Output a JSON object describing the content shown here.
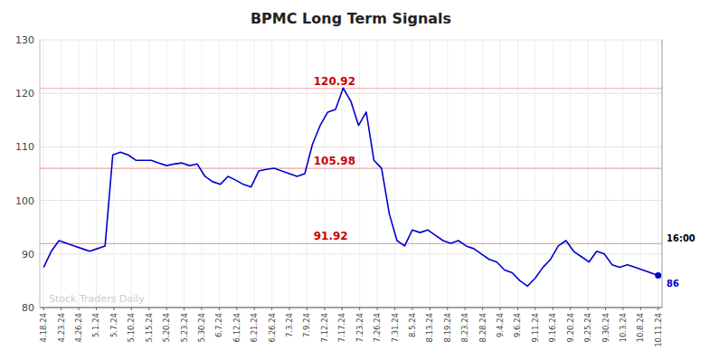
{
  "chart_data": {
    "type": "line",
    "title": "BPMC Long Term Signals",
    "color": "#0000cc",
    "grid": true,
    "x": [
      0,
      1,
      2,
      3,
      4,
      5,
      6,
      7,
      8,
      9,
      10,
      11,
      12,
      13,
      14,
      15,
      16,
      17,
      18,
      19,
      20,
      21,
      22,
      23,
      24,
      25,
      26,
      27,
      28,
      29,
      30,
      31,
      32,
      33,
      34,
      35,
      36,
      37,
      38,
      39,
      40,
      41,
      42,
      43,
      44,
      45,
      46,
      47,
      48,
      49,
      50,
      51,
      52,
      53,
      54,
      55,
      56,
      57,
      58,
      59,
      60,
      61,
      62,
      63,
      64,
      65,
      66,
      67,
      68,
      69,
      70,
      71,
      72,
      73,
      74,
      75,
      76,
      77,
      78,
      79,
      80
    ],
    "values": [
      87.5,
      90.5,
      92.5,
      92.0,
      91.5,
      91.0,
      90.5,
      91.0,
      91.5,
      108.5,
      109.0,
      108.5,
      107.5,
      107.5,
      107.5,
      107.0,
      106.5,
      106.8,
      107.0,
      106.5,
      106.8,
      104.5,
      103.5,
      103.0,
      104.5,
      103.8,
      103.0,
      102.5,
      105.5,
      105.8,
      106.0,
      105.5,
      105.0,
      104.5,
      105.0,
      110.5,
      114.0,
      116.5,
      117.0,
      121.0,
      118.5,
      114.0,
      116.5,
      107.5,
      106.0,
      97.5,
      92.5,
      91.5,
      94.5,
      94.0,
      94.5,
      93.5,
      92.5,
      92.0,
      92.5,
      91.5,
      91.0,
      90.0,
      89.0,
      88.5,
      87.0,
      86.5,
      85.0,
      84.0,
      85.5,
      87.5,
      89.0,
      91.5,
      92.5,
      90.5,
      89.5,
      88.5,
      90.5,
      90.0,
      88.0,
      87.5,
      88.0,
      87.5,
      87.0,
      86.5,
      86.0
    ],
    "last_value_label": "86",
    "xlim": [
      -0.5,
      80.5
    ],
    "xticks": [
      {
        "value": 0,
        "label": "4.18.24"
      },
      {
        "value": 2.285714,
        "label": "4.23.24"
      },
      {
        "value": 4.571429,
        "label": "4.26.24"
      },
      {
        "value": 6.857143,
        "label": "5.1.24"
      },
      {
        "value": 9.142857,
        "label": "5.7.24"
      },
      {
        "value": 11.428571,
        "label": "5.10.24"
      },
      {
        "value": 13.714286,
        "label": "5.15.24"
      },
      {
        "value": 16,
        "label": "5.20.24"
      },
      {
        "value": 18.285714,
        "label": "5.23.24"
      },
      {
        "value": 20.571429,
        "label": "5.30.24"
      },
      {
        "value": 22.857143,
        "label": "6.7.24"
      },
      {
        "value": 25.142857,
        "label": "6.12.24"
      },
      {
        "value": 27.428571,
        "label": "6.21.24"
      },
      {
        "value": 29.714286,
        "label": "6.26.24"
      },
      {
        "value": 32,
        "label": "7.3.24"
      },
      {
        "value": 34.285714,
        "label": "7.9.24"
      },
      {
        "value": 36.571429,
        "label": "7.12.24"
      },
      {
        "value": 38.857143,
        "label": "7.17.24"
      },
      {
        "value": 41.142857,
        "label": "7.23.24"
      },
      {
        "value": 43.428571,
        "label": "7.26.24"
      },
      {
        "value": 45.714286,
        "label": "7.31.24"
      },
      {
        "value": 48,
        "label": "8.5.24"
      },
      {
        "value": 50.285714,
        "label": "8.13.24"
      },
      {
        "value": 52.571429,
        "label": "8.19.24"
      },
      {
        "value": 54.857143,
        "label": "8.23.24"
      },
      {
        "value": 57.142857,
        "label": "8.28.24"
      },
      {
        "value": 59.428571,
        "label": "9.4.24"
      },
      {
        "value": 61.714286,
        "label": "9.6.24"
      },
      {
        "value": 64,
        "label": "9.11.24"
      },
      {
        "value": 66.285714,
        "label": "9.16.24"
      },
      {
        "value": 68.571429,
        "label": "9.20.24"
      },
      {
        "value": 70.857143,
        "label": "9.25.24"
      },
      {
        "value": 73.142857,
        "label": "9.30.24"
      },
      {
        "value": 75.428571,
        "label": "10.3.24"
      },
      {
        "value": 77.714286,
        "label": "10.8.24"
      },
      {
        "value": 80,
        "label": "10.11.24"
      }
    ],
    "ylim": [
      80,
      130
    ],
    "yticks": [
      80,
      90,
      100,
      110,
      120,
      130
    ],
    "reference_lines": [
      {
        "y": 120.92,
        "label": "120.92",
        "color": "#cc0000"
      },
      {
        "y": 105.98,
        "label": "105.98",
        "color": "#cc0000"
      },
      {
        "y": 91.92,
        "label": "91.92",
        "color": "#cc0000"
      }
    ],
    "annotations": [
      {
        "text": "16:00"
      },
      {
        "text": "Stock Traders Daily"
      }
    ]
  }
}
